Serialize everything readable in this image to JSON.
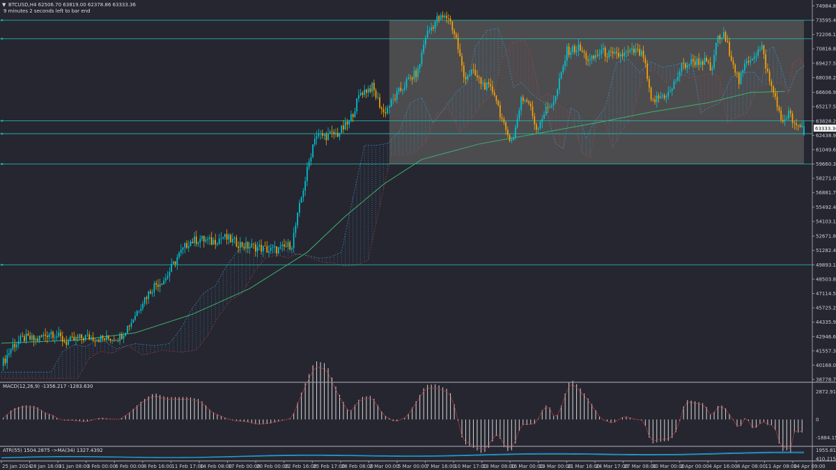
{
  "header": {
    "info_line": "BTCUSD,H4  62506.70 63819.00 62378.86 63333.36",
    "timer_line": "9 minutes 2 seconds left to bar end"
  },
  "panes": {
    "macd_label": "MACD(12,26,9) -1356.217 -1283.630",
    "atr_label": "ATR(55) 1504.2875  ->MA(34) 1327.4392"
  },
  "price_badge": "63333.36",
  "colors": {
    "background": "#262630",
    "bull": "#00c8d8",
    "bear": "#ffa500",
    "level_line": "#20b2aa",
    "ma_line": "#3cb371",
    "cloud_a": "#3aa0e0",
    "cloud_b": "#c04040",
    "range_box": "#5a5a5a"
  },
  "chart_data": [
    {
      "type": "candlestick",
      "symbol": "BTCUSD",
      "timeframe": "H4",
      "current_price": 63333.36,
      "ohlc_last": {
        "open": 62506.7,
        "high": 63819.0,
        "low": 62378.86,
        "close": 63333.36
      },
      "y_ticks": [
        74984.8,
        73595.4,
        72206.1,
        70816.8,
        69427.5,
        68038.2,
        66606.9,
        65217.5,
        63828.2,
        62438.9,
        61049.6,
        59660.3,
        58271.0,
        56881.7,
        55492.4,
        54103.1,
        52671.8,
        51282.4,
        49893.1,
        48503.8,
        47114.5,
        45725.2,
        44335.9,
        42946.6,
        41557.3,
        40168.0,
        38778.7
      ],
      "ylim": [
        38578,
        75420
      ],
      "x_ticks": [
        "25 Jan 2024",
        "28 Jan 16:00",
        "31 Jan 08:00",
        "3 Feb 00:00",
        "6 Feb 00:00",
        "8 Feb 16:00",
        "11 Feb 17:00",
        "14 Feb 08:00",
        "17 Feb 00:00",
        "20 Feb 00:00",
        "22 Feb 16:00",
        "25 Feb 17:00",
        "28 Feb 08:00",
        "2 Mar 00:00",
        "5 Mar 00:00",
        "7 Mar 16:00",
        "10 Mar 17:00",
        "13 Mar 08:00",
        "16 Mar 00:00",
        "19 Mar 00:00",
        "21 Mar 16:00",
        "24 Mar 17:00",
        "27 Mar 08:00",
        "30 Mar 00:00",
        "2 Apr 00:00",
        "4 Apr 16:00",
        "8 Apr 08:00",
        "11 Apr 08:00",
        "14 Apr 09:00"
      ],
      "horizontal_levels": [
        73595.4,
        71800,
        63850,
        62600,
        59660.3,
        49893.1
      ],
      "range_box": {
        "price_top": 73595.4,
        "price_bottom": 59660.3,
        "from": "4 Mar 2024",
        "to": "16 Apr 2024"
      },
      "price_path": [
        [
          0,
          40100
        ],
        [
          6,
          42100
        ],
        [
          12,
          42800
        ],
        [
          18,
          42600
        ],
        [
          26,
          43400
        ],
        [
          34,
          42400
        ],
        [
          44,
          42900
        ],
        [
          54,
          42700
        ],
        [
          62,
          42900
        ],
        [
          68,
          44400
        ],
        [
          74,
          46400
        ],
        [
          80,
          47900
        ],
        [
          86,
          48600
        ],
        [
          92,
          50600
        ],
        [
          98,
          52100
        ],
        [
          104,
          52400
        ],
        [
          110,
          52100
        ],
        [
          116,
          52600
        ],
        [
          122,
          52100
        ],
        [
          128,
          51700
        ],
        [
          134,
          51600
        ],
        [
          140,
          51300
        ],
        [
          146,
          51400
        ],
        [
          152,
          51900
        ],
        [
          158,
          57300
        ],
        [
          164,
          62400
        ],
        [
          170,
          62400
        ],
        [
          176,
          62600
        ],
        [
          182,
          63700
        ],
        [
          188,
          66600
        ],
        [
          194,
          67100
        ],
        [
          200,
          64600
        ],
        [
          206,
          66100
        ],
        [
          212,
          67600
        ],
        [
          218,
          68600
        ],
        [
          222,
          72100
        ],
        [
          228,
          73700
        ],
        [
          234,
          73900
        ],
        [
          238,
          71800
        ],
        [
          242,
          68100
        ],
        [
          246,
          68600
        ],
        [
          252,
          67400
        ],
        [
          258,
          66600
        ],
        [
          264,
          62600
        ],
        [
          268,
          62100
        ],
        [
          272,
          66100
        ],
        [
          276,
          65600
        ],
        [
          280,
          63100
        ],
        [
          284,
          64600
        ],
        [
          290,
          66100
        ],
        [
          296,
          70600
        ],
        [
          302,
          70900
        ],
        [
          308,
          69600
        ],
        [
          314,
          70600
        ],
        [
          320,
          70100
        ],
        [
          326,
          70300
        ],
        [
          332,
          70600
        ],
        [
          336,
          70100
        ],
        [
          340,
          65600
        ],
        [
          344,
          66100
        ],
        [
          350,
          66600
        ],
        [
          356,
          69100
        ],
        [
          362,
          69600
        ],
        [
          368,
          69600
        ],
        [
          372,
          68600
        ],
        [
          374,
          71600
        ],
        [
          378,
          72100
        ],
        [
          382,
          70100
        ],
        [
          386,
          67600
        ],
        [
          390,
          69600
        ],
        [
          394,
          70300
        ],
        [
          398,
          70900
        ],
        [
          402,
          67600
        ],
        [
          406,
          65600
        ],
        [
          408,
          63600
        ],
        [
          412,
          64600
        ],
        [
          416,
          63100
        ],
        [
          420,
          63333
        ]
      ],
      "ma_line": [
        [
          0,
          42300
        ],
        [
          40,
          42600
        ],
        [
          70,
          43300
        ],
        [
          100,
          45100
        ],
        [
          130,
          47600
        ],
        [
          160,
          51100
        ],
        [
          180,
          54600
        ],
        [
          200,
          57700
        ],
        [
          220,
          60100
        ],
        [
          250,
          61600
        ],
        [
          280,
          62600
        ],
        [
          310,
          63600
        ],
        [
          340,
          64700
        ],
        [
          370,
          65600
        ],
        [
          392,
          66600
        ],
        [
          410,
          66700
        ]
      ]
    },
    {
      "type": "bar",
      "name": "MACD(12,26,9)",
      "main": -1356.217,
      "signal": -1283.63,
      "y_ticks": [
        2872.919,
        0,
        -1884.158
      ],
      "ylim": [
        -2700,
        3700
      ]
    },
    {
      "type": "line",
      "name": "ATR(55)",
      "value": 1504.2875,
      "ma_value": 1327.4392,
      "y_ticks": [
        1955.8114,
        410.2156
      ],
      "ylim": [
        0,
        2400
      ]
    }
  ]
}
